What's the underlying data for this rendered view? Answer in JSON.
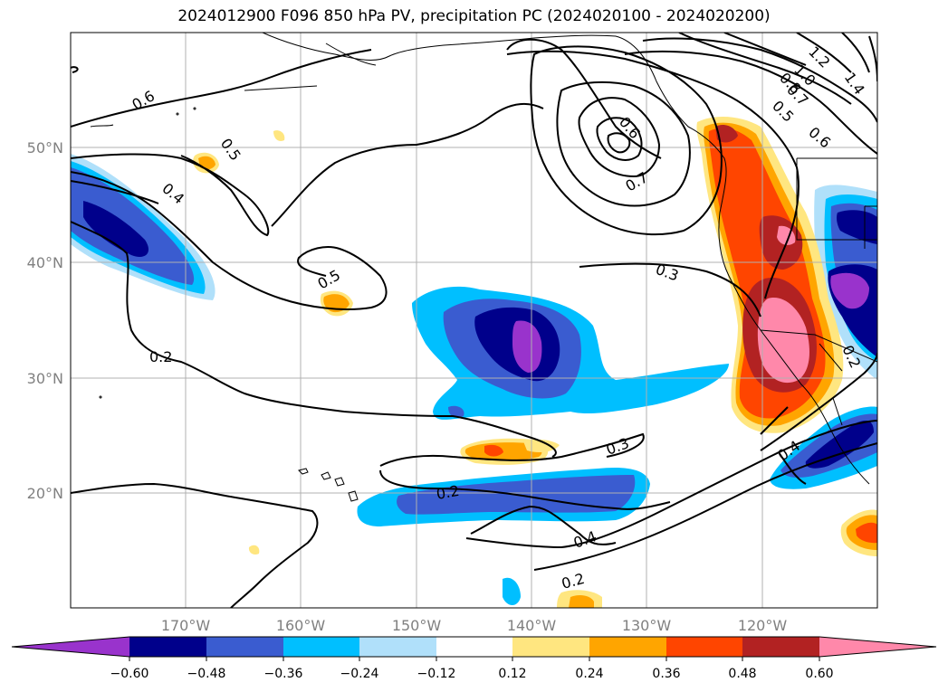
{
  "title": "2024012900 F096 850 hPa PV, precipitation PC (2024020100 - 2024020200)",
  "map": {
    "lon_range": [
      -180,
      -110
    ],
    "lat_range": [
      10,
      60
    ],
    "lon_ticks": [
      "170°W",
      "160°W",
      "150°W",
      "140°W",
      "130°W",
      "120°W"
    ],
    "lat_ticks": [
      "50°N",
      "40°N",
      "30°N",
      "20°N"
    ],
    "gridlines": true,
    "contour_labels": [
      "0.6",
      "0.5",
      "0.4",
      "0.5",
      "0.2",
      "0.3",
      "0.7",
      "0.6",
      "1.2",
      "1.0",
      "0.8",
      "0.7",
      "1.4",
      "0.5",
      "0.6",
      "0.2",
      "0.4",
      "0.3",
      "0.2",
      "0.4",
      "0.2"
    ]
  },
  "colorbar": {
    "tick_labels": [
      "−0.60",
      "−0.48",
      "−0.36",
      "−0.24",
      "−0.12",
      "0.12",
      "0.24",
      "0.36",
      "0.48",
      "0.60"
    ],
    "colors": [
      "#9933cc",
      "#00008b",
      "#3a5cd0",
      "#00bfff",
      "#b0e0fa",
      "#ffffff",
      "#ffe680",
      "#ffa500",
      "#ff4500",
      "#b22222",
      "#ff88aa"
    ]
  }
}
